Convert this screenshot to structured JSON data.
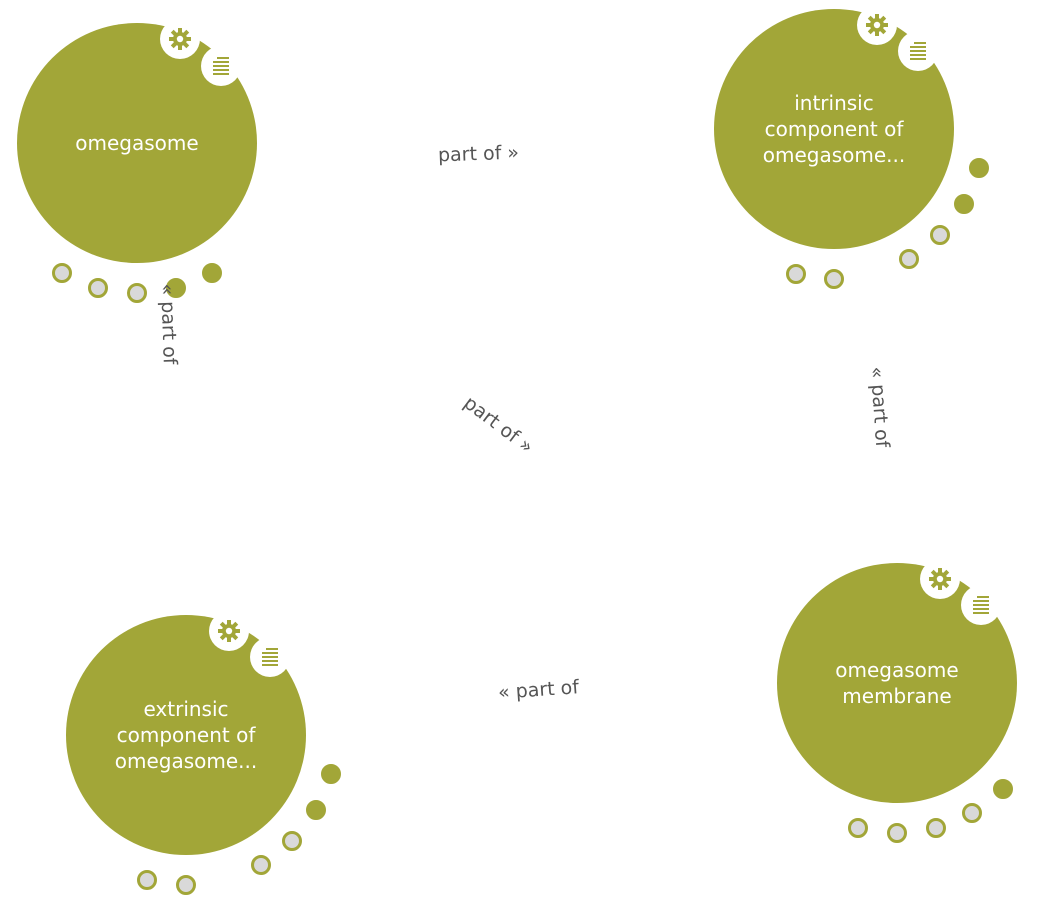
{
  "nodes": [
    {
      "id": "omegasome",
      "label": "omegasome"
    },
    {
      "id": "intrinsic",
      "label": "intrinsic\ncomponent of\nomegasome..."
    },
    {
      "id": "extrinsic",
      "label": "extrinsic\ncomponent of\nomegasome..."
    },
    {
      "id": "membrane",
      "label": "omegasome\nmembrane"
    }
  ],
  "edges": [
    {
      "label": "part of »"
    },
    {
      "label": "« part of"
    },
    {
      "label": "part of »"
    },
    {
      "label": "« part of"
    },
    {
      "label": "« part of"
    }
  ],
  "icons": {
    "settings": "gear-icon",
    "details": "list-icon"
  },
  "colors": {
    "node": "#a2a638",
    "dot_empty": "#d9d9d9",
    "edge_text": "#555555"
  }
}
